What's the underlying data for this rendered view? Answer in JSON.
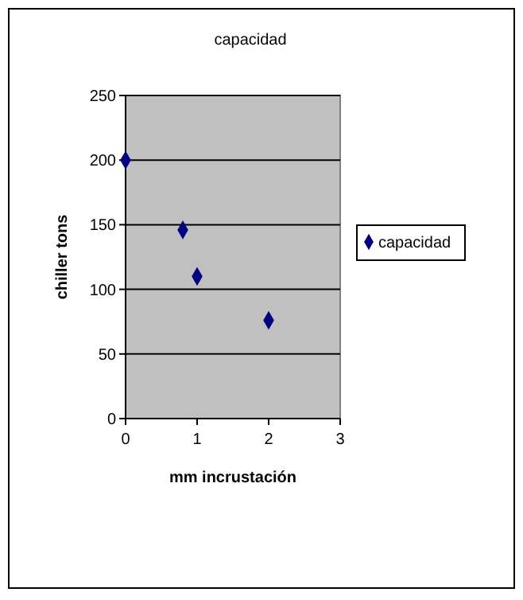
{
  "chart_data": {
    "type": "scatter",
    "title": "capacidad",
    "xlabel": "mm incrustación",
    "ylabel": "chiller tons",
    "x": [
      0,
      0.8,
      1,
      2
    ],
    "series": [
      {
        "name": "capacidad",
        "color": "#000080",
        "values": [
          200,
          146,
          110,
          76
        ]
      }
    ],
    "xlim": [
      0,
      3
    ],
    "xticks": [
      0,
      1,
      2,
      3
    ],
    "ylim": [
      0,
      250
    ],
    "yticks": [
      0,
      50,
      100,
      150,
      200,
      250
    ],
    "grid": "y",
    "legend": "right",
    "marker": "diamond"
  }
}
